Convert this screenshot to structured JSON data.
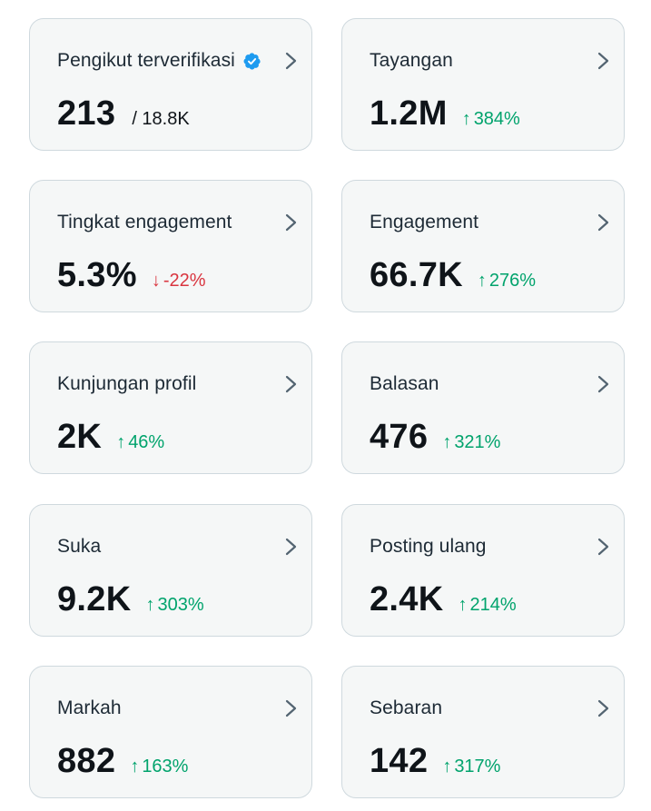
{
  "colors": {
    "up": "#00a36c",
    "down": "#d9353f",
    "verified": "#1d9bf0"
  },
  "cards": [
    {
      "label": "Pengikut terverifikasi",
      "value": "213",
      "total": "/ 18.8K",
      "verified_icon": "verified-badge-icon"
    },
    {
      "label": "Tayangan",
      "value": "1.2M",
      "arrow": "↑",
      "change": "384%",
      "direction": "up"
    },
    {
      "label": "Tingkat engagement",
      "value": "5.3%",
      "arrow": "↓",
      "change": "-22%",
      "direction": "down"
    },
    {
      "label": "Engagement",
      "value": "66.7K",
      "arrow": "↑",
      "change": "276%",
      "direction": "up"
    },
    {
      "label": "Kunjungan profil",
      "value": "2K",
      "arrow": "↑",
      "change": "46%",
      "direction": "up"
    },
    {
      "label": "Balasan",
      "value": "476",
      "arrow": "↑",
      "change": "321%",
      "direction": "up"
    },
    {
      "label": "Suka",
      "value": "9.2K",
      "arrow": "↑",
      "change": "303%",
      "direction": "up"
    },
    {
      "label": "Posting ulang",
      "value": "2.4K",
      "arrow": "↑",
      "change": "214%",
      "direction": "up"
    },
    {
      "label": "Markah",
      "value": "882",
      "arrow": "↑",
      "change": "163%",
      "direction": "up"
    },
    {
      "label": "Sebaran",
      "value": "142",
      "arrow": "↑",
      "change": "317%",
      "direction": "up"
    }
  ]
}
